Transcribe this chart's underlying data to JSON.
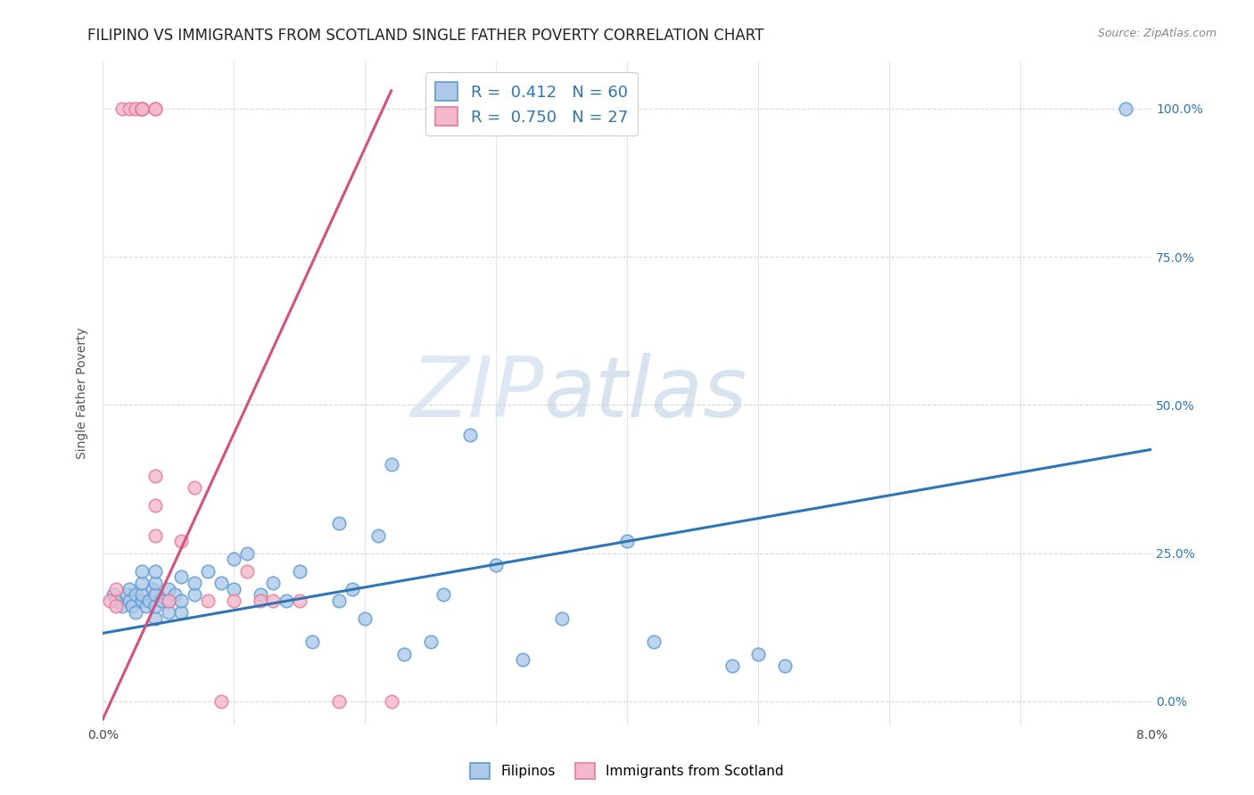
{
  "title": "FILIPINO VS IMMIGRANTS FROM SCOTLAND SINGLE FATHER POVERTY CORRELATION CHART",
  "source": "Source: ZipAtlas.com",
  "ylabel": "Single Father Poverty",
  "ytick_labels": [
    "0.0%",
    "25.0%",
    "50.0%",
    "75.0%",
    "100.0%"
  ],
  "ytick_values": [
    0.0,
    0.25,
    0.5,
    0.75,
    1.0
  ],
  "xlim": [
    0.0,
    0.08
  ],
  "ylim": [
    -0.04,
    1.08
  ],
  "legend_blue_r": "0.412",
  "legend_blue_n": "60",
  "legend_pink_r": "0.750",
  "legend_pink_n": "27",
  "legend_label_blue": "Filipinos",
  "legend_label_pink": "Immigrants from Scotland",
  "blue_color": "#aec8e8",
  "pink_color": "#f4b8cc",
  "blue_edge_color": "#5b9bd5",
  "pink_edge_color": "#e8799a",
  "blue_line_color": "#2e75b6",
  "pink_line_color": "#d94f7a",
  "watermark_zip": "ZIP",
  "watermark_atlas": "atlas",
  "blue_scatter_x": [
    0.0008,
    0.001,
    0.0015,
    0.0018,
    0.002,
    0.002,
    0.0022,
    0.0025,
    0.0025,
    0.003,
    0.003,
    0.003,
    0.003,
    0.0033,
    0.0035,
    0.0038,
    0.004,
    0.004,
    0.004,
    0.004,
    0.004,
    0.0045,
    0.005,
    0.005,
    0.005,
    0.0055,
    0.006,
    0.006,
    0.006,
    0.007,
    0.007,
    0.008,
    0.009,
    0.01,
    0.01,
    0.011,
    0.012,
    0.013,
    0.014,
    0.015,
    0.016,
    0.018,
    0.018,
    0.019,
    0.02,
    0.021,
    0.022,
    0.023,
    0.025,
    0.026,
    0.028,
    0.03,
    0.032,
    0.035,
    0.04,
    0.042,
    0.048,
    0.05,
    0.052,
    0.078
  ],
  "blue_scatter_y": [
    0.18,
    0.17,
    0.16,
    0.18,
    0.17,
    0.19,
    0.16,
    0.15,
    0.18,
    0.17,
    0.18,
    0.2,
    0.22,
    0.16,
    0.17,
    0.19,
    0.14,
    0.16,
    0.18,
    0.2,
    0.22,
    0.17,
    0.15,
    0.17,
    0.19,
    0.18,
    0.15,
    0.17,
    0.21,
    0.18,
    0.2,
    0.22,
    0.2,
    0.19,
    0.24,
    0.25,
    0.18,
    0.2,
    0.17,
    0.22,
    0.1,
    0.3,
    0.17,
    0.19,
    0.14,
    0.28,
    0.4,
    0.08,
    0.1,
    0.18,
    0.45,
    0.23,
    0.07,
    0.14,
    0.27,
    0.1,
    0.06,
    0.08,
    0.06,
    1.0
  ],
  "pink_scatter_x": [
    0.0005,
    0.001,
    0.001,
    0.0015,
    0.002,
    0.0025,
    0.003,
    0.003,
    0.003,
    0.003,
    0.004,
    0.004,
    0.004,
    0.004,
    0.004,
    0.005,
    0.006,
    0.007,
    0.008,
    0.009,
    0.01,
    0.011,
    0.012,
    0.013,
    0.015,
    0.018,
    0.022
  ],
  "pink_scatter_y": [
    0.17,
    0.16,
    0.19,
    1.0,
    1.0,
    1.0,
    1.0,
    1.0,
    1.0,
    1.0,
    1.0,
    1.0,
    0.28,
    0.33,
    0.38,
    0.17,
    0.27,
    0.36,
    0.17,
    0.0,
    0.17,
    0.22,
    0.17,
    0.17,
    0.17,
    0.0,
    0.0
  ],
  "blue_trendline_x": [
    0.0,
    0.08
  ],
  "blue_trendline_y": [
    0.115,
    0.425
  ],
  "pink_trendline_x": [
    0.0,
    0.022
  ],
  "pink_trendline_y": [
    -0.03,
    1.03
  ],
  "background_color": "#ffffff",
  "grid_color": "#d8d8d8",
  "title_fontsize": 12,
  "axis_fontsize": 10,
  "scatter_size": 110
}
